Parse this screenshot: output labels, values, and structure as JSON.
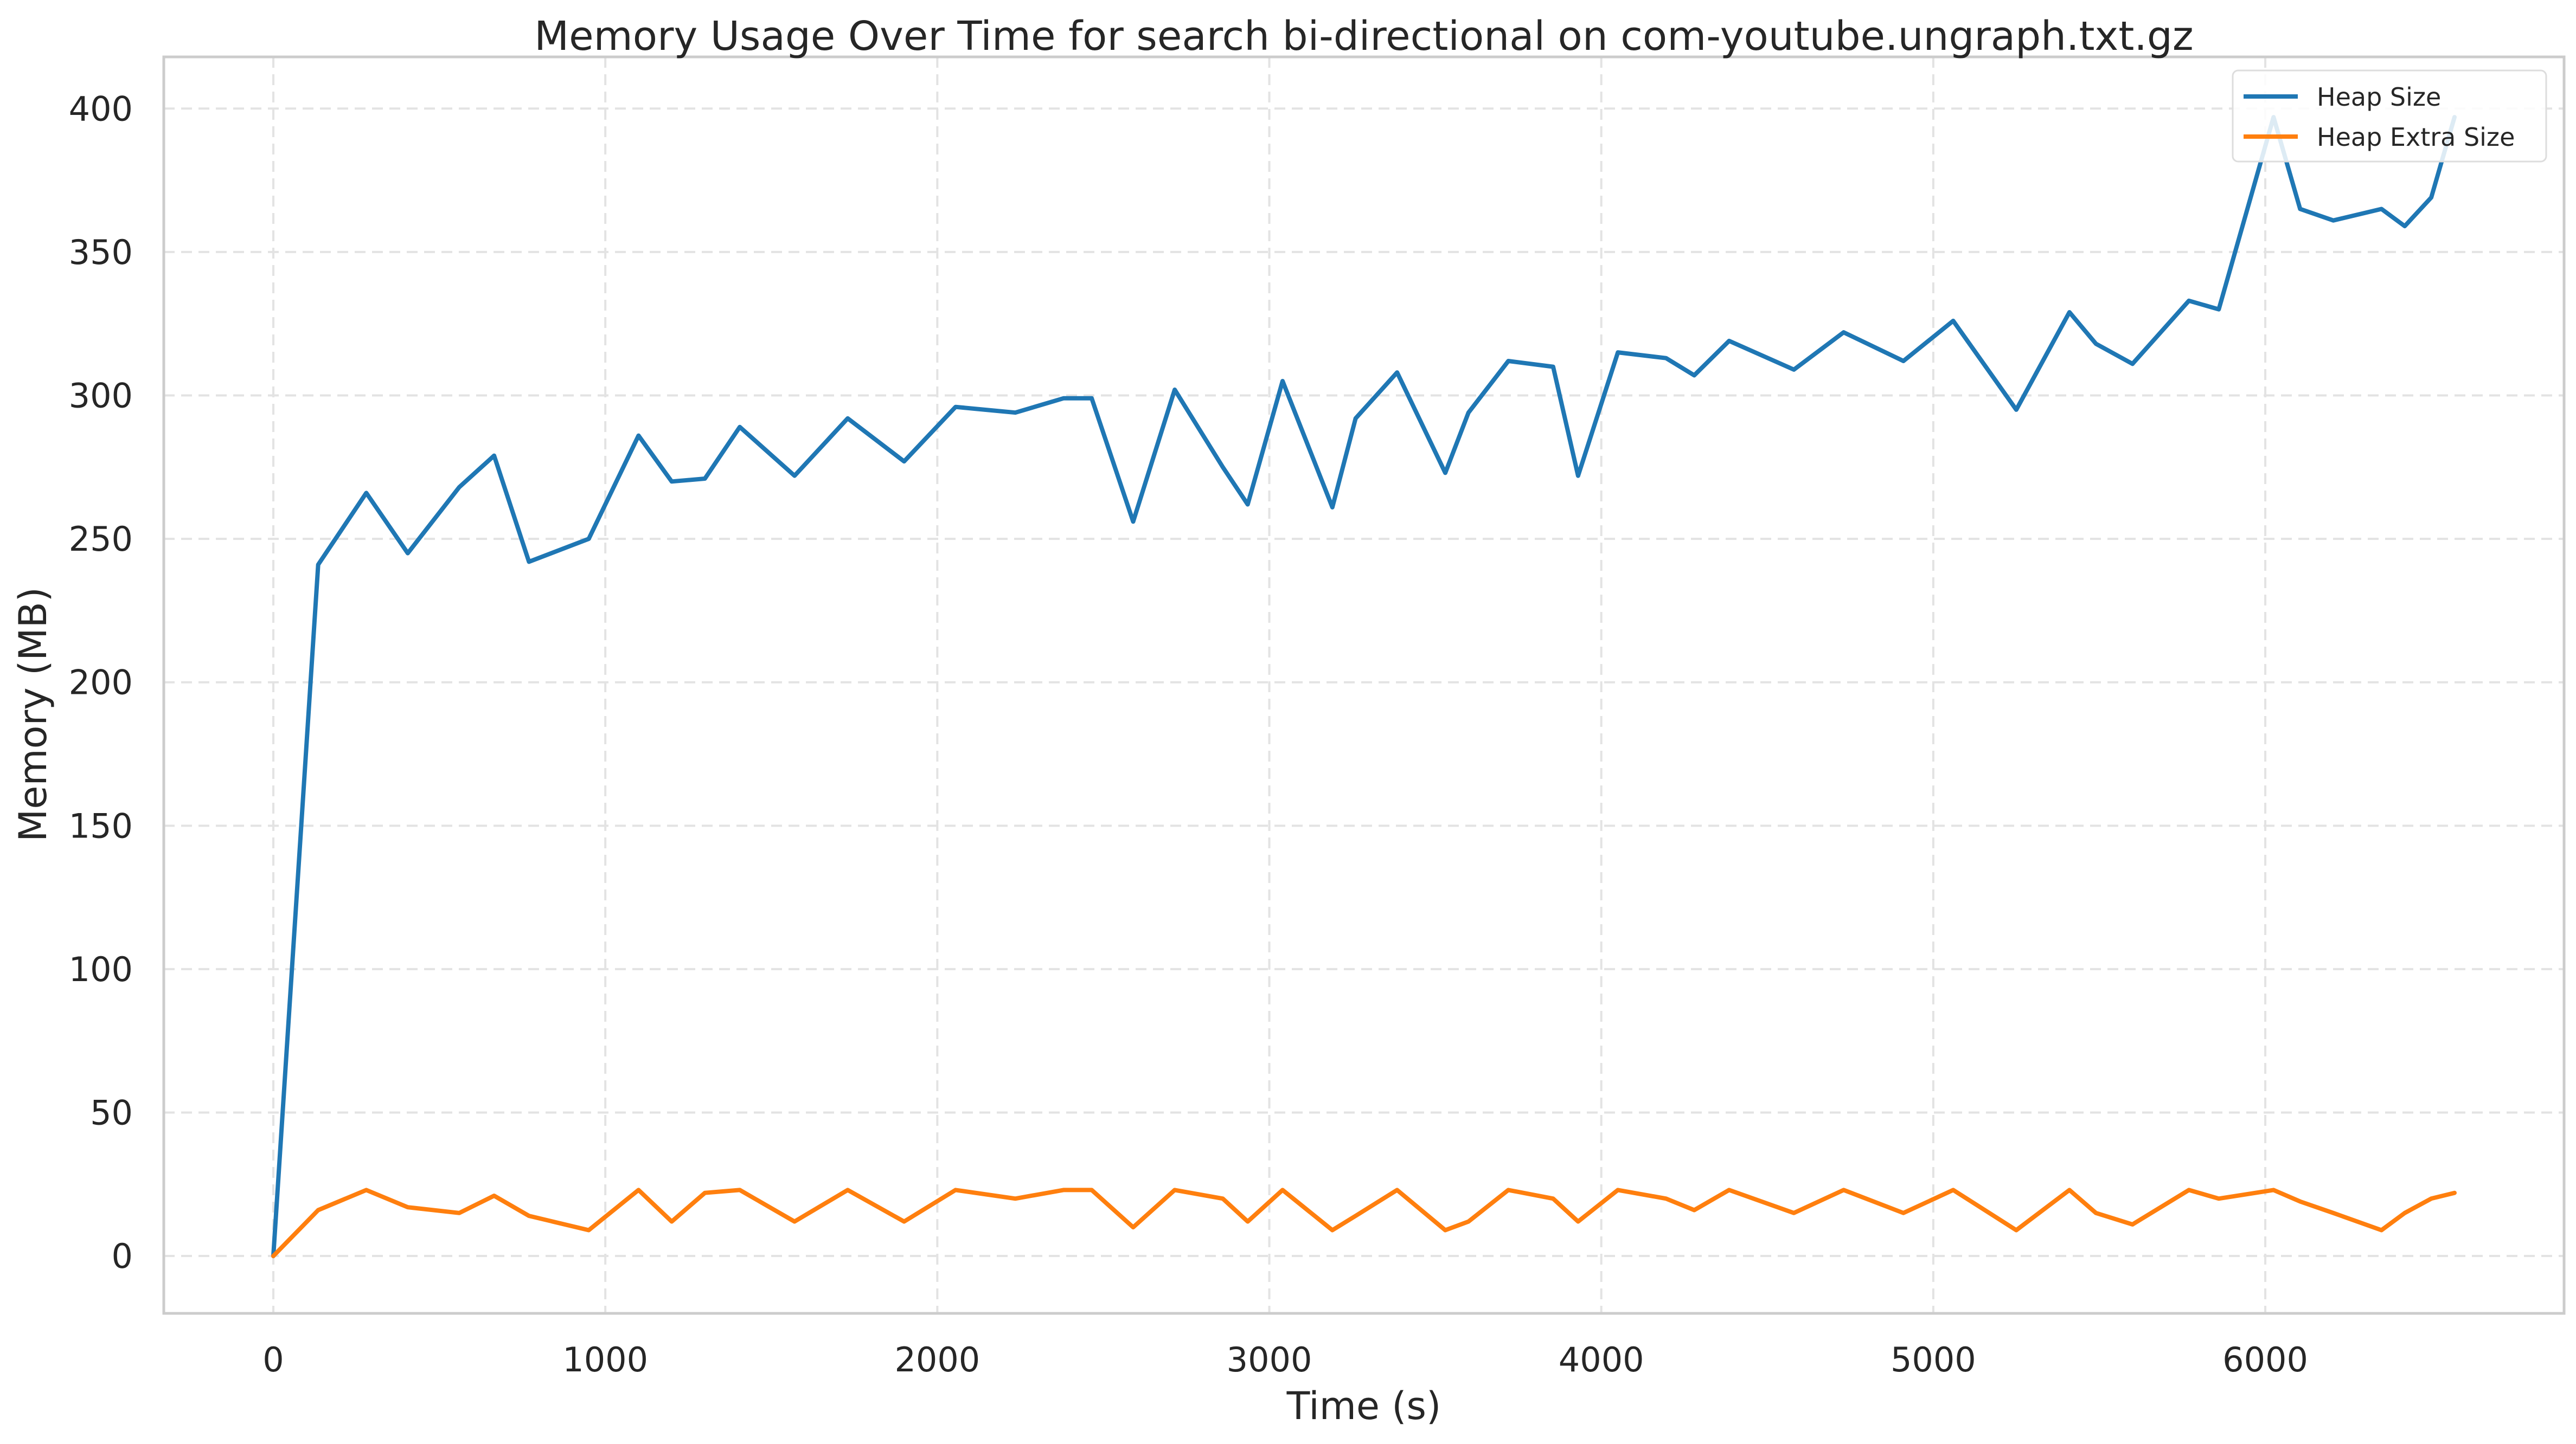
{
  "chart_data": {
    "type": "line",
    "title": "Memory Usage Over Time for search bi-directional on com-youtube.ungraph.txt.gz",
    "xlabel": "Time (s)",
    "ylabel": "Memory (MB)",
    "xlim": [
      -330,
      6900
    ],
    "ylim": [
      -20,
      418
    ],
    "xticks": [
      0,
      1000,
      2000,
      3000,
      4000,
      5000,
      6000
    ],
    "yticks": [
      0,
      50,
      100,
      150,
      200,
      250,
      300,
      350,
      400
    ],
    "grid": true,
    "legend_position": "top-right",
    "series": [
      {
        "name": "Heap Size",
        "color": "#1f77b4",
        "x": [
          0,
          135,
          280,
          405,
          560,
          665,
          770,
          950,
          1100,
          1200,
          1300,
          1405,
          1570,
          1730,
          1900,
          2055,
          2235,
          2380,
          2465,
          2590,
          2715,
          2860,
          2935,
          3040,
          3190,
          3260,
          3385,
          3530,
          3600,
          3720,
          3855,
          3930,
          4050,
          4195,
          4280,
          4385,
          4580,
          4730,
          4910,
          5060,
          5250,
          5410,
          5490,
          5600,
          5770,
          5860,
          6025,
          6105,
          6205,
          6350,
          6420,
          6500,
          6570
        ],
        "y": [
          0,
          241,
          266,
          245,
          268,
          279,
          242,
          250,
          286,
          270,
          271,
          289,
          272,
          292,
          277,
          296,
          294,
          299,
          299,
          256,
          302,
          275,
          262,
          305,
          261,
          292,
          308,
          273,
          294,
          312,
          310,
          272,
          315,
          313,
          307,
          319,
          309,
          322,
          312,
          326,
          295,
          329,
          318,
          311,
          333,
          330,
          397,
          365,
          361,
          365,
          359,
          369,
          397
        ]
      },
      {
        "name": "Heap Extra Size",
        "color": "#ff7f0e",
        "x": [
          0,
          135,
          280,
          405,
          560,
          665,
          770,
          950,
          1100,
          1200,
          1300,
          1405,
          1570,
          1730,
          1900,
          2055,
          2235,
          2380,
          2465,
          2590,
          2715,
          2860,
          2935,
          3040,
          3190,
          3260,
          3385,
          3530,
          3600,
          3720,
          3855,
          3930,
          4050,
          4195,
          4280,
          4385,
          4580,
          4730,
          4910,
          5060,
          5250,
          5410,
          5490,
          5600,
          5770,
          5860,
          6025,
          6105,
          6205,
          6350,
          6420,
          6500,
          6570
        ],
        "y": [
          0,
          16,
          23,
          17,
          15,
          21,
          14,
          9,
          23,
          12,
          22,
          23,
          12,
          23,
          12,
          23,
          20,
          23,
          23,
          10,
          23,
          20,
          12,
          23,
          9,
          14,
          23,
          9,
          12,
          23,
          20,
          12,
          23,
          20,
          16,
          23,
          15,
          23,
          15,
          23,
          9,
          23,
          15,
          11,
          23,
          20,
          23,
          19,
          15,
          9,
          15,
          20,
          22
        ]
      }
    ]
  }
}
